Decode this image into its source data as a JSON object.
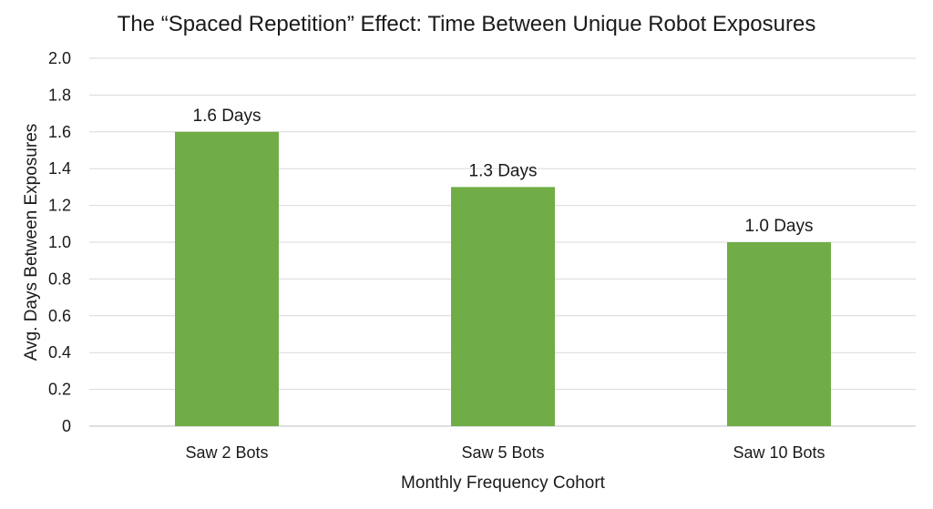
{
  "chart_data": {
    "type": "bar",
    "title": "The “Spaced Repetition” Effect: Time Between Unique Robot Exposures",
    "xlabel": "Monthly Frequency Cohort",
    "ylabel": "Avg. Days Between Exposures",
    "categories": [
      "Saw 2 Bots",
      "Saw 5 Bots",
      "Saw 10 Bots"
    ],
    "values": [
      1.6,
      1.3,
      1.0
    ],
    "data_labels": [
      "1.6 Days",
      "1.3 Days",
      "1.0 Days"
    ],
    "ylim": [
      0,
      2.0
    ],
    "yticks": [
      0,
      0.2,
      0.4,
      0.6,
      0.8,
      1.0,
      1.2,
      1.4,
      1.6,
      1.8,
      2.0
    ],
    "ytick_labels": [
      "0",
      "0.2",
      "0.4",
      "0.6",
      "0.8",
      "1.0",
      "1.2",
      "1.4",
      "1.6",
      "1.8",
      "2.0"
    ],
    "bar_color": "#70AD47",
    "grid": true,
    "legend": "none"
  }
}
